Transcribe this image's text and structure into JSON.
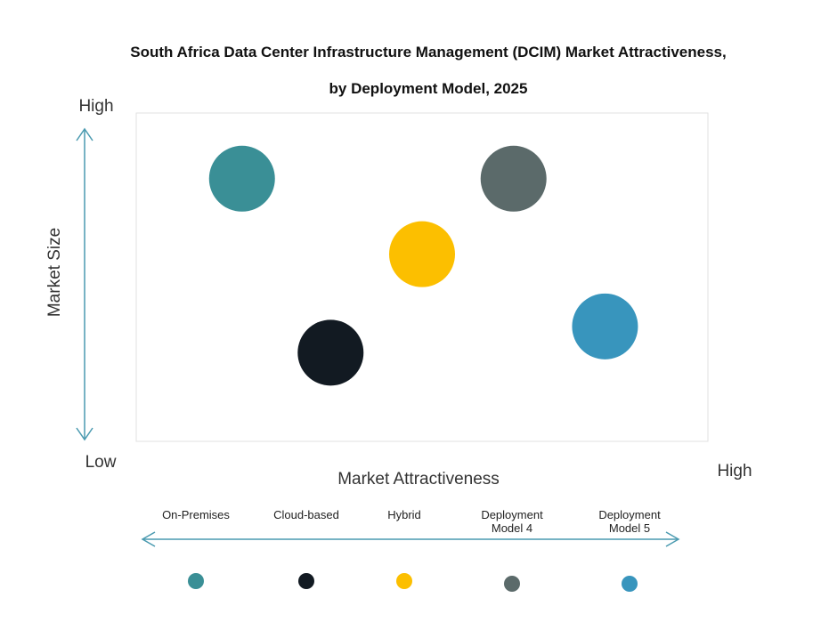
{
  "chart_data": {
    "type": "scatter",
    "title": "South Africa Data Center Infrastructure  Management (DCIM) Market Attractiveness,",
    "subtitle": "by Deployment Model, 2025",
    "xlabel": "Market Attractiveness",
    "ylabel": "Market Size",
    "x_low": "Low",
    "x_high": "High",
    "y_high": "High",
    "xlim": [
      0,
      100
    ],
    "ylim": [
      0,
      100
    ],
    "grid": false,
    "legend_placement": "bottom",
    "series": [
      {
        "name": "On-Premises",
        "legend_lines": [
          "On-Premises"
        ],
        "x": 18.5,
        "y": 80,
        "color": "#3a8f96"
      },
      {
        "name": "Cloud-based",
        "legend_lines": [
          "Cloud-based"
        ],
        "x": 34,
        "y": 27,
        "color": "#121a22"
      },
      {
        "name": "Hybrid",
        "legend_lines": [
          "Hybrid"
        ],
        "x": 50,
        "y": 57,
        "color": "#fcbf00"
      },
      {
        "name": "Deployment Model 4",
        "legend_lines": [
          "Deployment",
          "Model 4"
        ],
        "x": 66,
        "y": 80,
        "color": "#5b6a6a"
      },
      {
        "name": "Deployment Model 5",
        "legend_lines": [
          "Deployment",
          "Model 5"
        ],
        "x": 82,
        "y": 35,
        "color": "#3895bd"
      }
    ],
    "axis_arrow_color": "#4a9ab0"
  }
}
